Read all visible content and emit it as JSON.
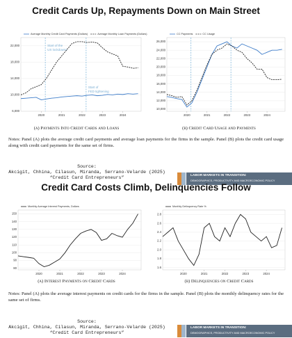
{
  "slides": [
    {
      "title": "Credit Cards Up, Repayments Down on Main Street",
      "captions": [
        "(a) Payments Into Credit Cards and Loans",
        "(b) Credit Card Usage and Payments"
      ],
      "notes": "Notes: Panel (A) plots the average credit card payments and average loan payments for the firms in the sample. Panel (B) plots the credit card usage along with credit card payments for the same set of firms.",
      "source": [
        "Source:",
        "Akcigit, Chhina, Cilasun, Miranda, Serrano-Velarde (2025)",
        "“Credit Card Entrepreneurs”"
      ],
      "banner": [
        "LABOR MARKETS IN TRANSITION:",
        "DEMOGRAPHICS, PRODUCTIVITY AND MACROECONOMIC POLICY"
      ]
    },
    {
      "title": "Credit Card Costs Climb, Delinquencies Follow",
      "captions": [
        "(a) Interest Payments on Credit Cards",
        "(b) Delinquencies on Credit Cards"
      ],
      "notes": "Notes: Panel (A) plots the average interest payments on credit cards for the firms in the sample. Panel (B) plots the monthly delinquency rates for the same set of firms.",
      "source": [
        "Source:",
        "Akcigit, Chhina, Cilasun, Miranda, Serrano-Velarde (2025)",
        "“Credit Card Entrepreneurs”"
      ],
      "banner": [
        "LABOR MARKETS IN TRANSITION:",
        "DEMOGRAPHICS, PRODUCTIVITY AND MACROECONOMIC POLICY"
      ]
    }
  ],
  "chart_data": [
    {
      "type": "line",
      "x": [
        2019,
        2019.25,
        2019.5,
        2019.75,
        2020,
        2020.25,
        2020.5,
        2020.75,
        2021,
        2021.25,
        2021.5,
        2021.75,
        2022,
        2022.25,
        2022.5,
        2022.75,
        2023,
        2023.25,
        2023.5,
        2023.75,
        2024,
        2024.25,
        2024.5,
        2024.75
      ],
      "series": [
        {
          "name": "Average Monthly Credit Card Payments (Dollars)",
          "color": "#3d7cc9",
          "style": "solid",
          "values": [
            9100,
            9200,
            9300,
            9400,
            8800,
            9000,
            9200,
            9300,
            9500,
            9600,
            9700,
            9800,
            9700,
            9900,
            10000,
            9800,
            9900,
            10100,
            10000,
            10200,
            10100,
            10300,
            10200,
            10300
          ]
        },
        {
          "name": "Average Monthly Loan Payments (Dollars)",
          "color": "#222222",
          "style": "dashed",
          "values": [
            10000,
            10500,
            11500,
            12000,
            12500,
            14000,
            16000,
            18000,
            19500,
            21000,
            22500,
            23000,
            23000,
            22800,
            22900,
            22700,
            21500,
            20500,
            20000,
            19500,
            17000,
            16800,
            16500,
            16600
          ]
        }
      ],
      "xlim": [
        2019,
        2024.9
      ],
      "xticks": [
        2020,
        2021,
        2022,
        2023,
        2024
      ],
      "ylim": [
        6000,
        24000
      ],
      "yticks": [
        {
          "value": 6000,
          "label": "6,000"
        },
        {
          "value": 10000,
          "label": "10,000"
        },
        {
          "value": 14000,
          "label": "14,000"
        },
        {
          "value": 18000,
          "label": "18,000"
        },
        {
          "value": 22000,
          "label": "22,000"
        }
      ],
      "vlines": [
        2020.2,
        2022.2
      ],
      "annotations": [
        "Start of the US lockdowns",
        "Start of FED tightening"
      ],
      "grid": true
    },
    {
      "type": "line",
      "x": [
        2019,
        2019.25,
        2019.5,
        2019.75,
        2020,
        2020.25,
        2020.5,
        2020.75,
        2021,
        2021.25,
        2021.5,
        2021.75,
        2022,
        2022.25,
        2022.5,
        2022.75,
        2023,
        2023.25,
        2023.5,
        2023.75,
        2024,
        2024.25,
        2024.5,
        2024.75
      ],
      "series": [
        {
          "name": "CC Payments",
          "color": "#3d7cc9",
          "style": "solid",
          "values": [
            13000,
            12800,
            12500,
            12300,
            10500,
            11500,
            14000,
            17000,
            20000,
            23000,
            25000,
            25500,
            26000,
            25000,
            24500,
            25500,
            25000,
            24500,
            24000,
            23000,
            23500,
            24000,
            24000,
            24200
          ]
        },
        {
          "name": "CC Usage",
          "color": "#222222",
          "style": "dashed",
          "values": [
            13500,
            13200,
            12800,
            13000,
            11000,
            12000,
            14500,
            17500,
            20500,
            23000,
            24000,
            24500,
            25500,
            25000,
            24000,
            23500,
            22000,
            21000,
            19500,
            19500,
            17500,
            17000,
            17000,
            17100
          ]
        }
      ],
      "xlim": [
        2019,
        2024.9
      ],
      "xticks": [
        2020,
        2021,
        2022,
        2023,
        2024
      ],
      "ylim": [
        9500,
        27000
      ],
      "yticks": [
        {
          "value": 10000,
          "label": "10,000"
        },
        {
          "value": 12000,
          "label": "12,000"
        },
        {
          "value": 14000,
          "label": "14,000"
        },
        {
          "value": 16000,
          "label": "16,000"
        },
        {
          "value": 18000,
          "label": "18,000"
        },
        {
          "value": 20000,
          "label": "20,000"
        },
        {
          "value": 22000,
          "label": "22,000"
        },
        {
          "value": 24000,
          "label": "24,000"
        },
        {
          "value": 26000,
          "label": "26,000"
        }
      ],
      "vlines": [
        2020.2,
        2022.2
      ],
      "grid": true
    },
    {
      "type": "line",
      "x": [
        2019,
        2019.25,
        2019.5,
        2019.75,
        2020,
        2020.25,
        2020.5,
        2020.75,
        2021,
        2021.25,
        2021.5,
        2021.75,
        2022,
        2022.25,
        2022.5,
        2022.75,
        2023,
        2023.25,
        2023.5,
        2023.75,
        2024,
        2024.25,
        2024.5,
        2024.75
      ],
      "series": [
        {
          "name": "Monthly Average Interest Payments, Dollars",
          "color": "#222222",
          "style": "solid",
          "values": [
            96,
            95,
            94,
            93,
            86,
            82,
            84,
            88,
            92,
            100,
            110,
            118,
            125,
            128,
            130,
            126,
            116,
            118,
            125,
            122,
            120,
            130,
            138,
            150
          ]
        }
      ],
      "xlim": [
        2019,
        2024.9
      ],
      "xticks": [
        2020,
        2021,
        2022,
        2023,
        2024
      ],
      "ylim": [
        78,
        155
      ],
      "yticks": [
        80,
        90,
        100,
        110,
        120,
        130,
        140,
        150
      ],
      "grid": true
    },
    {
      "type": "line",
      "x": [
        2019,
        2019.25,
        2019.5,
        2019.75,
        2020,
        2020.25,
        2020.5,
        2020.75,
        2021,
        2021.25,
        2021.5,
        2021.75,
        2022,
        2022.25,
        2022.5,
        2022.75,
        2023,
        2023.25,
        2023.5,
        2023.75,
        2024,
        2024.25,
        2024.5,
        2024.75
      ],
      "series": [
        {
          "name": "Monthly Delinquency Rate %",
          "color": "#222222",
          "style": "solid",
          "values": [
            2.3,
            2.4,
            2.5,
            2.2,
            2.0,
            1.8,
            1.65,
            1.9,
            2.5,
            2.6,
            2.3,
            2.2,
            2.5,
            2.3,
            2.6,
            2.8,
            2.7,
            2.4,
            2.3,
            2.2,
            2.3,
            2.05,
            2.1,
            2.5
          ]
        }
      ],
      "xlim": [
        2019,
        2024.9
      ],
      "xticks": [
        2020,
        2021,
        2022,
        2023,
        2024
      ],
      "ylim": [
        1.55,
        2.9
      ],
      "yticks": [
        1.6,
        1.8,
        {
          "value": 2,
          "label": "2.0"
        },
        2.2,
        2.4,
        2.6,
        2.8
      ],
      "grid": true
    }
  ]
}
